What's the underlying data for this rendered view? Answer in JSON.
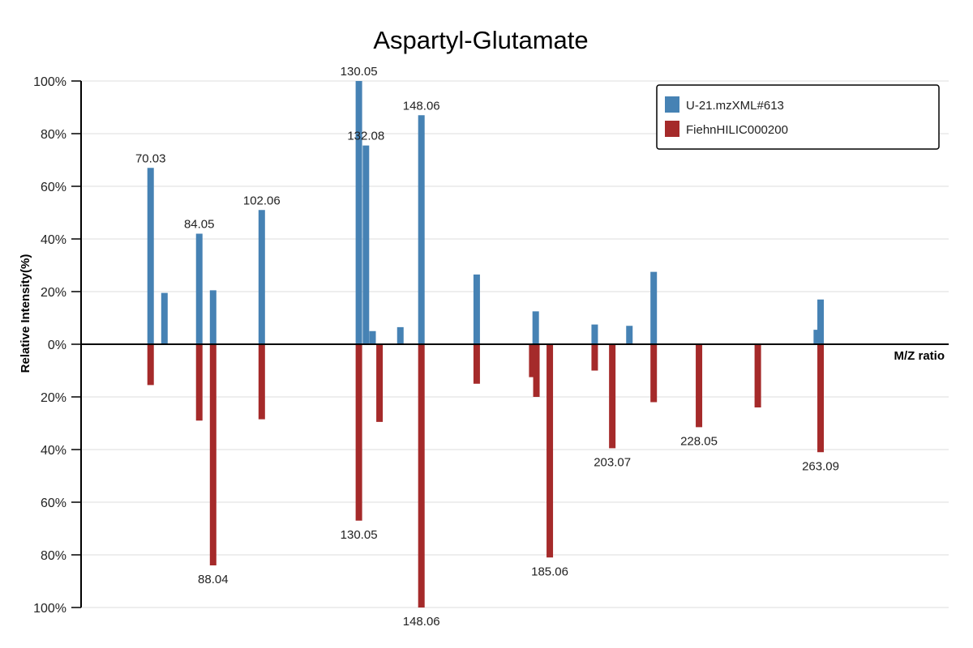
{
  "chart_data": {
    "type": "bar",
    "title": "Aspartyl-Glutamate",
    "xlabel": "M/Z ratio",
    "ylabel": "Relative Intensity(%)",
    "ylim": [
      -100,
      100
    ],
    "y_ticks": [
      {
        "value": 100,
        "label": "100%"
      },
      {
        "value": 80,
        "label": "80%"
      },
      {
        "value": 60,
        "label": "60%"
      },
      {
        "value": 40,
        "label": "40%"
      },
      {
        "value": 20,
        "label": "20%"
      },
      {
        "value": 0,
        "label": "0%"
      },
      {
        "value": -20,
        "label": "20%"
      },
      {
        "value": -40,
        "label": "40%"
      },
      {
        "value": -60,
        "label": "60%"
      },
      {
        "value": -80,
        "label": "80%"
      },
      {
        "value": -100,
        "label": "100%"
      }
    ],
    "grid": true,
    "legend_position": "top-right",
    "colors": {
      "experimental": "#4682b4",
      "reference": "#a52a2a"
    },
    "series": [
      {
        "name": "U-21.mzXML#613",
        "direction": "up",
        "peaks": [
          {
            "mz": 70.03,
            "intensity": 67,
            "label": "70.03"
          },
          {
            "mz": 74.02,
            "intensity": 19.5
          },
          {
            "mz": 84.05,
            "intensity": 42,
            "label": "84.05"
          },
          {
            "mz": 88.04,
            "intensity": 20.5
          },
          {
            "mz": 102.06,
            "intensity": 51,
            "label": "102.06"
          },
          {
            "mz": 130.05,
            "intensity": 100,
            "label": "130.05"
          },
          {
            "mz": 132.08,
            "intensity": 75.5,
            "label": "132.08"
          },
          {
            "mz": 134.0,
            "intensity": 5
          },
          {
            "mz": 142.0,
            "intensity": 6.5
          },
          {
            "mz": 148.06,
            "intensity": 87,
            "label": "148.06"
          },
          {
            "mz": 164.0,
            "intensity": 26.5
          },
          {
            "mz": 181.0,
            "intensity": 12.5
          },
          {
            "mz": 198.0,
            "intensity": 7.5
          },
          {
            "mz": 208.0,
            "intensity": 7
          },
          {
            "mz": 215.0,
            "intensity": 27.5
          },
          {
            "mz": 262.0,
            "intensity": 5.5
          },
          {
            "mz": 263.09,
            "intensity": 17
          }
        ]
      },
      {
        "name": "FiehnHILIC000200",
        "direction": "down",
        "peaks": [
          {
            "mz": 70.03,
            "intensity": 15.5
          },
          {
            "mz": 84.05,
            "intensity": 29
          },
          {
            "mz": 88.04,
            "intensity": 84,
            "label": "88.04"
          },
          {
            "mz": 102.06,
            "intensity": 28.5
          },
          {
            "mz": 130.05,
            "intensity": 67,
            "label": "130.05"
          },
          {
            "mz": 136.0,
            "intensity": 29.5
          },
          {
            "mz": 148.06,
            "intensity": 100,
            "label": "148.06"
          },
          {
            "mz": 164.0,
            "intensity": 15
          },
          {
            "mz": 180.0,
            "intensity": 12.5
          },
          {
            "mz": 181.2,
            "intensity": 20
          },
          {
            "mz": 185.06,
            "intensity": 81,
            "label": "185.06"
          },
          {
            "mz": 198.0,
            "intensity": 10
          },
          {
            "mz": 203.07,
            "intensity": 39.5,
            "label": "203.07"
          },
          {
            "mz": 215.0,
            "intensity": 22
          },
          {
            "mz": 228.05,
            "intensity": 31.5,
            "label": "228.05"
          },
          {
            "mz": 245.0,
            "intensity": 24
          },
          {
            "mz": 263.09,
            "intensity": 41,
            "label": "263.09"
          }
        ]
      }
    ]
  }
}
